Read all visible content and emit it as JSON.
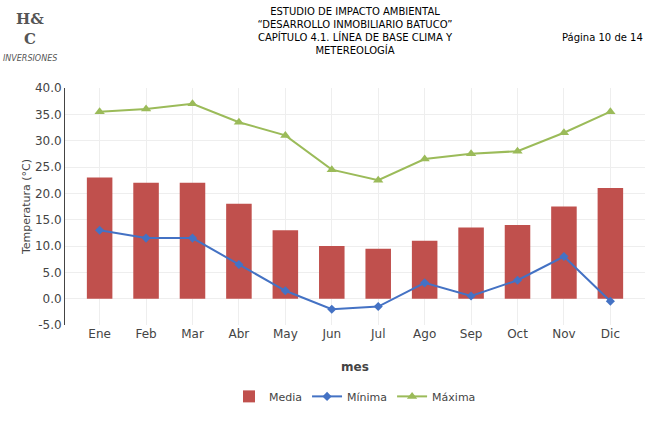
{
  "chart_data": {
    "type": "bar",
    "title": "ESTUDIO DE IMPACTO AMBIENTAL\n“DESARROLLO INMOBILIARIO BATUCO”\nCAPÍTULO 4.1. LÍNEA DE BASE CLIMA Y\nMETEREOLOGÍA",
    "annotations": [
      "H&\nC",
      "INVERSIONES",
      "Página 10 de 14"
    ],
    "xlabel": "mes",
    "ylabel": "Temperatura (°C)",
    "categories": [
      "Ene",
      "Feb",
      "Mar",
      "Abr",
      "May",
      "Jun",
      "Jul",
      "Ago",
      "Sep",
      "Oct",
      "Nov",
      "Dic"
    ],
    "series": [
      {
        "name": "Media",
        "type": "bar",
        "color": "#C0504D",
        "values": [
          23.0,
          22.0,
          22.0,
          18.0,
          13.0,
          10.0,
          9.5,
          11.0,
          13.5,
          14.0,
          17.5,
          21.0
        ]
      },
      {
        "name": "Mínima",
        "type": "line",
        "color": "#4472C4",
        "marker": "diamond",
        "values": [
          13.0,
          11.5,
          11.5,
          6.5,
          1.5,
          -2.0,
          -1.5,
          3.0,
          0.5,
          3.5,
          8.0,
          -0.5
        ]
      },
      {
        "name": "Máxima",
        "type": "line",
        "color": "#9BBB59",
        "marker": "triangle-up",
        "values": [
          35.5,
          36.0,
          37.0,
          33.5,
          31.0,
          24.5,
          22.5,
          26.5,
          27.5,
          28.0,
          31.5,
          35.5
        ]
      }
    ],
    "ylim": [
      -5.0,
      40.0
    ],
    "yticks": [
      {
        "value": -5,
        "label": "-5.0"
      },
      {
        "value": 0,
        "label": "0.0"
      },
      {
        "value": 5,
        "label": "5.0"
      },
      {
        "value": 10,
        "label": "10.0"
      },
      {
        "value": 15,
        "label": "15.0"
      },
      {
        "value": 20,
        "label": "20.0"
      },
      {
        "value": 25,
        "label": "25.0"
      },
      {
        "value": 30,
        "label": "30.0"
      },
      {
        "value": 35,
        "label": "35.0"
      },
      {
        "value": 40,
        "label": "40.0"
      }
    ],
    "grid": true,
    "legend": "bottom"
  }
}
